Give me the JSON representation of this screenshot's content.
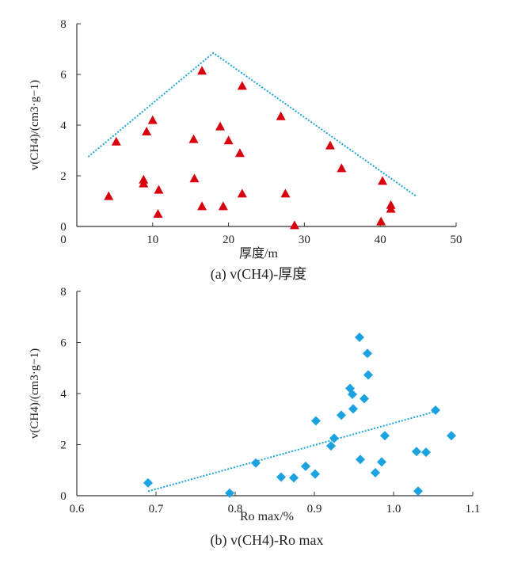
{
  "chart_data": [
    {
      "type": "scatter",
      "caption": "(a) v(CH4)-厚度",
      "xlabel": "厚度/m",
      "ylabel": "v(CH4)/(cm3·g−1)",
      "xlim": [
        0,
        50
      ],
      "ylim": [
        0,
        8
      ],
      "xticks": [
        "0",
        "10",
        "20",
        "30",
        "40",
        "50"
      ],
      "yticks": [
        "0",
        "2",
        "4",
        "6",
        "8"
      ],
      "marker": "triangle",
      "color": "#d9000e",
      "line_color": "#1aa3d9",
      "points": [
        [
          4.2,
          1.2
        ],
        [
          5.2,
          3.35
        ],
        [
          8.8,
          1.85
        ],
        [
          8.8,
          1.7
        ],
        [
          9.2,
          3.75
        ],
        [
          10,
          4.2
        ],
        [
          10.8,
          1.45
        ],
        [
          10.7,
          0.5
        ],
        [
          15.4,
          3.45
        ],
        [
          15.5,
          1.9
        ],
        [
          16.5,
          6.15
        ],
        [
          16.5,
          0.8
        ],
        [
          18.9,
          3.95
        ],
        [
          19.3,
          0.8
        ],
        [
          20,
          3.4
        ],
        [
          21.5,
          2.9
        ],
        [
          21.8,
          5.55
        ],
        [
          21.8,
          1.3
        ],
        [
          26.9,
          4.35
        ],
        [
          27.5,
          1.3
        ],
        [
          28.7,
          0.05
        ],
        [
          33.4,
          3.2
        ],
        [
          34.9,
          2.3
        ],
        [
          40.3,
          1.8
        ],
        [
          40.1,
          0.2
        ],
        [
          41.4,
          0.85
        ],
        [
          41.4,
          0.7
        ]
      ],
      "envelope": [
        [
          1.5,
          2.75
        ],
        [
          18,
          6.85
        ],
        [
          44.7,
          1.2
        ]
      ]
    },
    {
      "type": "scatter",
      "caption": "(b) v(CH4)-Ro max",
      "xlabel": "Ro max/%",
      "ylabel": "v(CH4)/(cm3·g−1)",
      "xlim": [
        0.6,
        1.1
      ],
      "ylim": [
        0,
        8
      ],
      "xticks": [
        "0.6",
        "0.7",
        "0.8",
        "0.9",
        "1.0",
        "1.1"
      ],
      "yticks": [
        "0",
        "2",
        "4",
        "6",
        "8"
      ],
      "marker": "diamond",
      "color": "#1aa3e0",
      "line_color": "#1aa3d9",
      "points": [
        [
          0.69,
          0.5
        ],
        [
          0.793,
          0.1
        ],
        [
          0.826,
          1.28
        ],
        [
          0.858,
          0.73
        ],
        [
          0.874,
          0.7
        ],
        [
          0.889,
          1.15
        ],
        [
          0.901,
          0.85
        ],
        [
          0.902,
          2.93
        ],
        [
          0.921,
          1.95
        ],
        [
          0.925,
          2.25
        ],
        [
          0.934,
          3.15
        ],
        [
          0.945,
          4.2
        ],
        [
          0.948,
          3.97
        ],
        [
          0.949,
          3.4
        ],
        [
          0.957,
          6.2
        ],
        [
          0.958,
          1.42
        ],
        [
          0.963,
          3.8
        ],
        [
          0.967,
          5.57
        ],
        [
          0.968,
          4.73
        ],
        [
          0.977,
          0.9
        ],
        [
          0.985,
          1.32
        ],
        [
          0.989,
          2.35
        ],
        [
          1.029,
          1.73
        ],
        [
          1.031,
          0.18
        ],
        [
          1.041,
          1.7
        ],
        [
          1.053,
          3.35
        ],
        [
          1.073,
          2.35
        ]
      ],
      "trendline": [
        [
          0.69,
          0.17
        ],
        [
          1.053,
          3.3
        ]
      ]
    }
  ]
}
